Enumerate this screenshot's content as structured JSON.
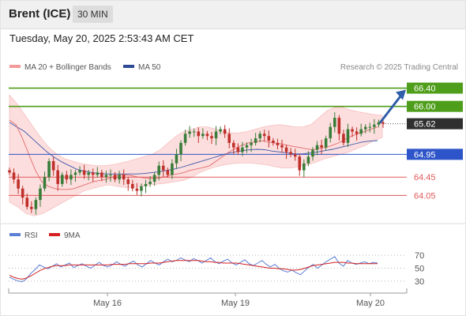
{
  "header": {
    "instrument": "Brent (ICE)",
    "timeframe": "30 MIN",
    "datetime": "Tuesday, May 20, 2025 2:53:43 AM CET"
  },
  "legend": {
    "ma20_label": "MA 20 + Bollinger Bands",
    "ma50_label": "MA 50",
    "rsi_label": "RSI",
    "ma9_label": "9MA",
    "credit": "Research © 2025 Trading Central"
  },
  "colors": {
    "up": "#3a7d3a",
    "down": "#c0302b",
    "ma20": "#e46c6c",
    "ma50": "#3a56a8",
    "band": "#fbd3d3",
    "resistance": "#4f9e1b",
    "pivot": "#2d54c8",
    "support": "#e05a5a",
    "current": "#2f2f2f",
    "arrow": "#2f5fa8",
    "rsi": "#5b7fd6",
    "rsi_ma": "#d42020"
  },
  "chart_data": [
    {
      "type": "candlestick",
      "x_labels": [
        "May 16",
        "May 19",
        "May 20"
      ],
      "ylim": [
        63.45,
        66.6
      ],
      "levels": [
        {
          "value": 66.4,
          "label": "66.40",
          "kind": "resistance"
        },
        {
          "value": 66.0,
          "label": "66.00",
          "kind": "resistance"
        },
        {
          "value": 65.62,
          "label": "65.62",
          "kind": "current"
        },
        {
          "value": 64.95,
          "label": "64.95",
          "kind": "pivot"
        },
        {
          "value": 64.45,
          "label": "64.45",
          "kind": "support"
        },
        {
          "value": 64.05,
          "label": "64.05",
          "kind": "support"
        }
      ],
      "closes": [
        64.55,
        64.4,
        64.2,
        64.0,
        63.8,
        63.75,
        63.95,
        64.2,
        64.45,
        64.8,
        64.6,
        64.3,
        64.5,
        64.4,
        64.5,
        64.55,
        64.6,
        64.5,
        64.55,
        64.5,
        64.55,
        64.45,
        64.5,
        64.5,
        64.4,
        64.5,
        64.4,
        64.3,
        64.2,
        64.15,
        64.25,
        64.3,
        64.35,
        64.5,
        64.7,
        64.6,
        64.5,
        64.75,
        64.95,
        65.2,
        65.4,
        65.45,
        65.45,
        65.35,
        65.4,
        65.35,
        65.3,
        65.45,
        65.5,
        65.4,
        65.2,
        65.1,
        65.0,
        65.1,
        65.15,
        65.2,
        65.3,
        65.4,
        65.35,
        65.25,
        65.2,
        65.15,
        65.1,
        65.0,
        64.95,
        64.9,
        64.6,
        64.75,
        64.9,
        65.05,
        65.15,
        65.1,
        65.3,
        65.55,
        65.75,
        65.4,
        65.2,
        65.5,
        65.45,
        65.4,
        65.5,
        65.55,
        65.55,
        65.6,
        65.65,
        65.62
      ],
      "ma20": [
        65.7,
        65.6,
        65.3,
        64.95,
        64.6,
        64.35,
        64.25,
        64.2,
        64.18,
        64.18,
        64.2,
        64.25,
        64.3,
        64.35,
        64.38,
        64.4,
        64.45,
        64.5,
        64.5,
        64.48,
        64.45,
        64.43,
        64.42,
        64.43,
        64.45,
        64.5,
        64.52,
        64.55,
        64.6,
        64.63,
        64.66,
        64.7,
        64.8,
        64.9,
        65.0,
        65.08,
        65.15,
        65.2,
        65.22,
        65.25,
        65.22,
        65.2,
        65.18,
        65.15,
        65.12,
        65.1,
        65.07,
        65.05,
        65.08,
        65.1,
        65.15,
        65.2,
        65.28,
        65.35,
        65.4,
        65.45,
        65.5,
        65.55
      ],
      "ma50": [
        65.65,
        65.55,
        65.45,
        65.3,
        65.15,
        65.0,
        64.88,
        64.78,
        64.7,
        64.62,
        64.58,
        64.55,
        64.53,
        64.52,
        64.52,
        64.52,
        64.52,
        64.52,
        64.53,
        64.55,
        64.57,
        64.6,
        64.63,
        64.67,
        64.72,
        64.77,
        64.82,
        64.87,
        64.92,
        64.97,
        65.0,
        65.03,
        65.05,
        65.06,
        65.05,
        65.02,
        65.0,
        64.98,
        64.96,
        64.96,
        64.98,
        65.0,
        65.03,
        65.06,
        65.1,
        65.14,
        65.18,
        65.22,
        65.24,
        65.25
      ],
      "band_upper": [
        66.25,
        66.05,
        65.8,
        65.55,
        65.3,
        65.1,
        64.95,
        64.85,
        64.8,
        64.75,
        64.72,
        64.7,
        64.7,
        64.72,
        64.76,
        64.8,
        64.85,
        64.9,
        64.95,
        65.05,
        65.2,
        65.35,
        65.45,
        65.5,
        65.55,
        65.55,
        65.5,
        65.45,
        65.42,
        65.42,
        65.45,
        65.5,
        65.55,
        65.58,
        65.6,
        65.58,
        65.55,
        65.55,
        65.6,
        65.75,
        65.9,
        65.98,
        65.98,
        65.92,
        65.88,
        65.85,
        65.82,
        65.8
      ],
      "band_lower": [
        63.9,
        63.8,
        63.65,
        63.6,
        63.65,
        63.75,
        63.85,
        63.95,
        64.05,
        64.15,
        64.2,
        64.25,
        64.28,
        64.25,
        64.22,
        64.22,
        64.25,
        64.28,
        64.3,
        64.32,
        64.35,
        64.38,
        64.45,
        64.55,
        64.62,
        64.68,
        64.72,
        64.75,
        64.76,
        64.76,
        64.74,
        64.72,
        64.68,
        64.65,
        64.65,
        64.68,
        64.72,
        64.78,
        64.85,
        64.9,
        64.95,
        65.0,
        65.08,
        65.15,
        65.25,
        65.32
      ]
    },
    {
      "type": "line",
      "name": "RSI",
      "ylim": [
        20,
        80
      ],
      "ticks": [
        70,
        50,
        30
      ],
      "rsi": [
        36,
        33,
        30,
        29,
        34,
        42,
        48,
        55,
        52,
        49,
        53,
        57,
        52,
        55,
        58,
        51,
        54,
        57,
        53,
        50,
        55,
        59,
        54,
        52,
        55,
        60,
        56,
        53,
        58,
        61,
        55,
        52,
        57,
        62,
        58,
        55,
        60,
        64,
        60,
        62,
        66,
        63,
        60,
        65,
        62,
        58,
        62,
        66,
        60,
        57,
        61,
        64,
        58,
        55,
        59,
        63,
        57,
        54,
        58,
        62,
        56,
        52,
        56,
        50,
        46,
        44,
        47,
        43,
        40,
        46,
        52,
        56,
        50,
        55,
        60,
        64,
        68,
        58,
        53,
        62,
        58,
        56,
        58,
        60,
        57,
        59,
        58
      ],
      "ma9": [
        39,
        36,
        34,
        33,
        35,
        38,
        42,
        46,
        49,
        51,
        53,
        54,
        54,
        54,
        55,
        55,
        55,
        55,
        55,
        55,
        55,
        55,
        55,
        55,
        56,
        56,
        56,
        56,
        57,
        57,
        57,
        57,
        57,
        58,
        58,
        58,
        59,
        60,
        61,
        62,
        62,
        62,
        62,
        62,
        62,
        61,
        60,
        60,
        59,
        59,
        58,
        58,
        58,
        58,
        57,
        56,
        55,
        54,
        53,
        52,
        51,
        50,
        50,
        49,
        49,
        48,
        47,
        47,
        48,
        50,
        52,
        54,
        55,
        56,
        57,
        58,
        59,
        59,
        59,
        58,
        58,
        57,
        57,
        57,
        57,
        57,
        57
      ]
    }
  ]
}
